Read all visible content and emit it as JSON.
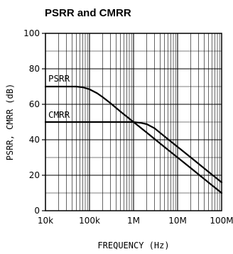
{
  "chart_data": {
    "type": "line",
    "title": "PSRR and CMRR",
    "xlabel": "FREQUENCY (Hz)",
    "ylabel": "PSRR, CMRR (dB)",
    "xscale": "log",
    "xlim": [
      10000,
      100000000
    ],
    "ylim": [
      0,
      100
    ],
    "xticks": [
      {
        "value": 10000,
        "label": "10k"
      },
      {
        "value": 100000,
        "label": "100k"
      },
      {
        "value": 1000000,
        "label": "1M"
      },
      {
        "value": 10000000,
        "label": "10M"
      },
      {
        "value": 100000000,
        "label": "100M"
      }
    ],
    "yticks": [
      0,
      20,
      40,
      60,
      80,
      100
    ],
    "grid": true,
    "legend": "none",
    "series": [
      {
        "name": "PSRR",
        "points": [
          [
            10000,
            70
          ],
          [
            50000,
            70
          ],
          [
            70000,
            69.6
          ],
          [
            100000,
            68.5
          ],
          [
            150000,
            66.2
          ],
          [
            200000,
            64
          ],
          [
            300000,
            60.6
          ],
          [
            500000,
            56
          ],
          [
            1000000,
            50
          ],
          [
            2000000,
            44
          ],
          [
            5000000,
            36
          ],
          [
            10000000,
            30
          ],
          [
            20000000,
            24
          ],
          [
            50000000,
            16
          ],
          [
            100000000,
            10
          ]
        ]
      },
      {
        "name": "CMRR",
        "points": [
          [
            10000,
            50
          ],
          [
            1000000,
            50
          ],
          [
            1500000,
            49.5
          ],
          [
            2000000,
            48.8
          ],
          [
            3000000,
            46.5
          ],
          [
            5000000,
            42
          ],
          [
            10000000,
            36
          ],
          [
            20000000,
            30
          ],
          [
            50000000,
            22
          ],
          [
            100000000,
            16
          ]
        ]
      }
    ]
  }
}
